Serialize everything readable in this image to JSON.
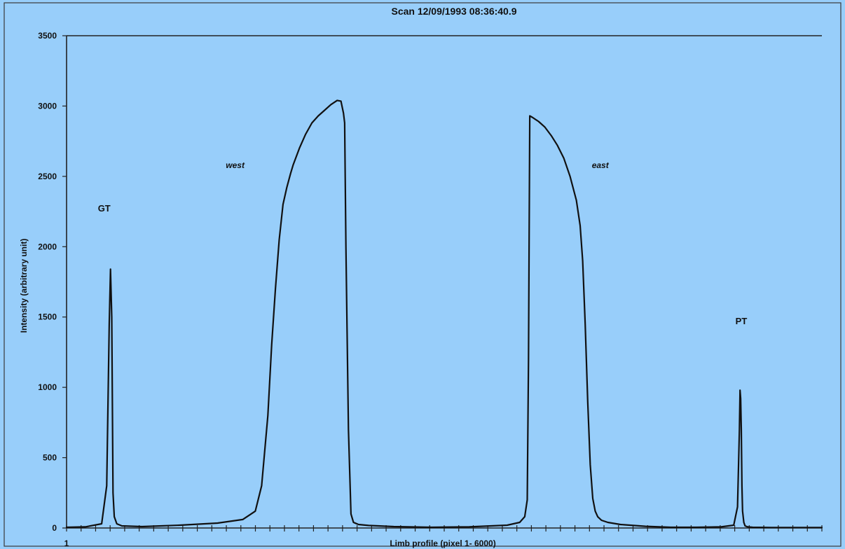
{
  "chart_data": {
    "type": "line",
    "title": "Scan 12/09/1993 08:36:40.9",
    "xlabel": "Limb profile (pixel 1- 6000)",
    "ylabel": "Intensity (arbitrary unit)",
    "x_tick_label": "1",
    "xlim": [
      1,
      6000
    ],
    "ylim": [
      0,
      3500
    ],
    "y_ticks": [
      0,
      500,
      1000,
      1500,
      2000,
      2500,
      3000,
      3500
    ],
    "grid": false,
    "legend": "none",
    "annotations": [
      {
        "id": "gt",
        "text": "GT",
        "italic": false,
        "x": 300,
        "y": 2250
      },
      {
        "id": "west",
        "text": "west",
        "italic": true,
        "x": 1340,
        "y": 2560
      },
      {
        "id": "east",
        "text": "east",
        "italic": true,
        "x": 4240,
        "y": 2560
      },
      {
        "id": "pt",
        "text": "PT",
        "italic": false,
        "x": 5360,
        "y": 1450
      }
    ],
    "series": [
      {
        "x": [
          1,
          150,
          280,
          320,
          340,
          350,
          360,
          370,
          380,
          400,
          440,
          600,
          900,
          1200,
          1400,
          1500,
          1550,
          1600,
          1630,
          1660,
          1690,
          1720,
          1750,
          1780,
          1800,
          1850,
          1900,
          1950,
          2000,
          2050,
          2100,
          2150,
          2180,
          2200,
          2210,
          2220,
          2240,
          2260,
          2280,
          2320,
          2400,
          2600,
          2900,
          3200,
          3500,
          3600,
          3640,
          3660,
          3670,
          3680,
          3700,
          3750,
          3800,
          3850,
          3900,
          3950,
          4000,
          4050,
          4080,
          4100,
          4120,
          4140,
          4160,
          4180,
          4200,
          4220,
          4250,
          4300,
          4400,
          4600,
          4800,
          5000,
          5200,
          5300,
          5330,
          5345,
          5350,
          5355,
          5360,
          5365,
          5370,
          5380,
          5390,
          5410,
          5450,
          5600,
          6000
        ],
        "y": [
          5,
          8,
          30,
          300,
          1450,
          1840,
          1500,
          250,
          80,
          30,
          15,
          10,
          20,
          35,
          60,
          120,
          300,
          800,
          1300,
          1700,
          2050,
          2300,
          2420,
          2520,
          2580,
          2700,
          2800,
          2880,
          2930,
          2970,
          3010,
          3040,
          3035,
          2950,
          2880,
          2000,
          700,
          100,
          40,
          25,
          18,
          10,
          5,
          8,
          20,
          40,
          80,
          200,
          1200,
          2930,
          2920,
          2890,
          2850,
          2790,
          2720,
          2630,
          2500,
          2330,
          2150,
          1900,
          1450,
          900,
          450,
          210,
          120,
          80,
          55,
          40,
          25,
          12,
          5,
          5,
          8,
          20,
          150,
          700,
          980,
          920,
          700,
          300,
          120,
          40,
          15,
          8,
          5,
          3,
          3
        ]
      }
    ]
  }
}
